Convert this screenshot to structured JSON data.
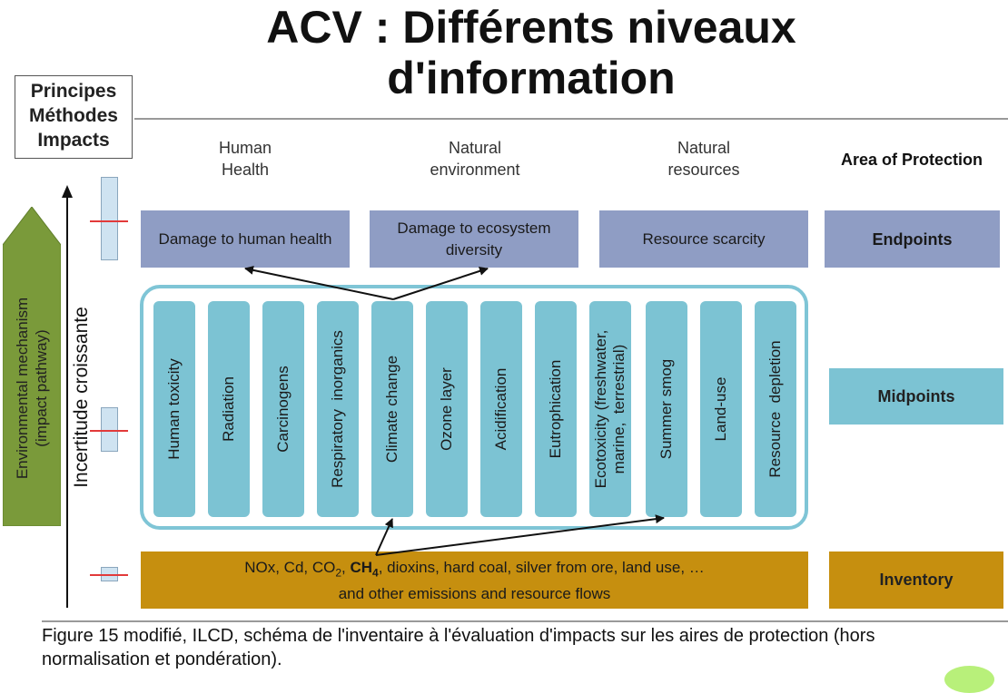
{
  "title": "ACV : Différents niveaux d'information",
  "legend": {
    "line1": "Principes",
    "line2": "Méthodes",
    "line3": "Impacts"
  },
  "areas": {
    "human_health": "Human\nHealth",
    "natural_environment": "Natural\nenvironment",
    "natural_resources": "Natural\nresources",
    "area_of_protection": "Area of Protection"
  },
  "endpoints": {
    "damage_human": "Damage to human health",
    "damage_ecosystem": "Damage to ecosystem diversity",
    "resource_scarcity": "Resource scarcity",
    "label": "Endpoints"
  },
  "midpoints": {
    "label": "Midpoints",
    "categories": [
      "Human toxicity",
      "Radiation",
      "Carcinogens",
      "Respiratory  inorganics",
      "Climate change",
      "Ozone layer",
      "Acidification",
      "Eutrophication",
      "Ecotoxicity (freshwater,\nmarine,  terrestrial)",
      "Summer smog",
      "Land-use",
      "Resource  depletion"
    ]
  },
  "inventory": {
    "pre": "NOx, Cd, CO",
    "sub2": "2",
    "ch": "CH",
    "sub4": "4",
    "post": ", dioxins, hard coal, silver from ore, land use, …",
    "line2": "and other emissions and resource flows",
    "label": "Inventory",
    "sep": ", "
  },
  "side": {
    "environmental_mechanism": "Environmental mechanism\n(impact pathway)",
    "incertitude": "Incertitude croissante"
  },
  "caption": "Figure 15 modifié, ILCD, schéma de l'inventaire à l'évaluation d'impacts sur les aires de protection (hors normalisation et pondération).",
  "colors": {
    "endpoint": "#8f9dc4",
    "midpoint": "#7cc3d3",
    "inventory": "#c68f0f",
    "env_arrow": "#7a9a3a",
    "uncertainty_marker": "#e23a3a"
  }
}
